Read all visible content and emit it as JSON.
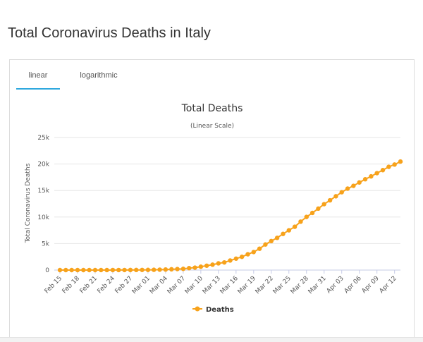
{
  "page": {
    "title": "Total Coronavirus Deaths in Italy"
  },
  "tabs": [
    {
      "label": "linear",
      "active": true
    },
    {
      "label": "logarithmic",
      "active": false
    }
  ],
  "colors": {
    "series": "#f7a21b",
    "tab_active": "#2fa8de",
    "grid": "#e6e6e6",
    "axis_line": "#c6cbe6"
  },
  "chart_data": {
    "type": "line",
    "title": "Total Deaths",
    "subtitle": "(Linear Scale)",
    "xlabel": "",
    "ylabel": "Total Coronavirus Deaths",
    "ylim": [
      0,
      25000
    ],
    "yticks": [
      0,
      5000,
      10000,
      15000,
      20000,
      25000
    ],
    "ytick_labels": [
      "0",
      "5k",
      "10k",
      "15k",
      "20k",
      "25k"
    ],
    "grid": true,
    "legend": "bottom-center",
    "x_tick_labels": [
      "Feb 15",
      "Feb 18",
      "Feb 21",
      "Feb 24",
      "Feb 27",
      "Mar 01",
      "Mar 04",
      "Mar 07",
      "Mar 10",
      "Mar 13",
      "Mar 16",
      "Mar 19",
      "Mar 22",
      "Mar 25",
      "Mar 28",
      "Mar 31",
      "Apr 03",
      "Apr 06",
      "Apr 09",
      "Apr 12"
    ],
    "x": [
      "Feb 15",
      "Feb 16",
      "Feb 17",
      "Feb 18",
      "Feb 19",
      "Feb 20",
      "Feb 21",
      "Feb 22",
      "Feb 23",
      "Feb 24",
      "Feb 25",
      "Feb 26",
      "Feb 27",
      "Feb 28",
      "Feb 29",
      "Mar 01",
      "Mar 02",
      "Mar 03",
      "Mar 04",
      "Mar 05",
      "Mar 06",
      "Mar 07",
      "Mar 08",
      "Mar 09",
      "Mar 10",
      "Mar 11",
      "Mar 12",
      "Mar 13",
      "Mar 14",
      "Mar 15",
      "Mar 16",
      "Mar 17",
      "Mar 18",
      "Mar 19",
      "Mar 20",
      "Mar 21",
      "Mar 22",
      "Mar 23",
      "Mar 24",
      "Mar 25",
      "Mar 26",
      "Mar 27",
      "Mar 28",
      "Mar 29",
      "Mar 30",
      "Mar 31",
      "Apr 01",
      "Apr 02",
      "Apr 03",
      "Apr 04",
      "Apr 05",
      "Apr 06",
      "Apr 07",
      "Apr 08",
      "Apr 09",
      "Apr 10",
      "Apr 11",
      "Apr 12",
      "Apr 13"
    ],
    "series": [
      {
        "name": "Deaths",
        "values": [
          0,
          0,
          0,
          0,
          0,
          0,
          1,
          2,
          3,
          7,
          10,
          12,
          17,
          21,
          29,
          34,
          52,
          79,
          107,
          148,
          197,
          233,
          366,
          463,
          631,
          827,
          1016,
          1266,
          1441,
          1809,
          2158,
          2503,
          2978,
          3405,
          4032,
          4825,
          5476,
          6077,
          6820,
          7503,
          8165,
          9134,
          10023,
          10779,
          11591,
          12428,
          13155,
          13915,
          14681,
          15362,
          15887,
          16523,
          17127,
          17669,
          18279,
          18849,
          19468,
          19899,
          20465
        ]
      }
    ]
  }
}
